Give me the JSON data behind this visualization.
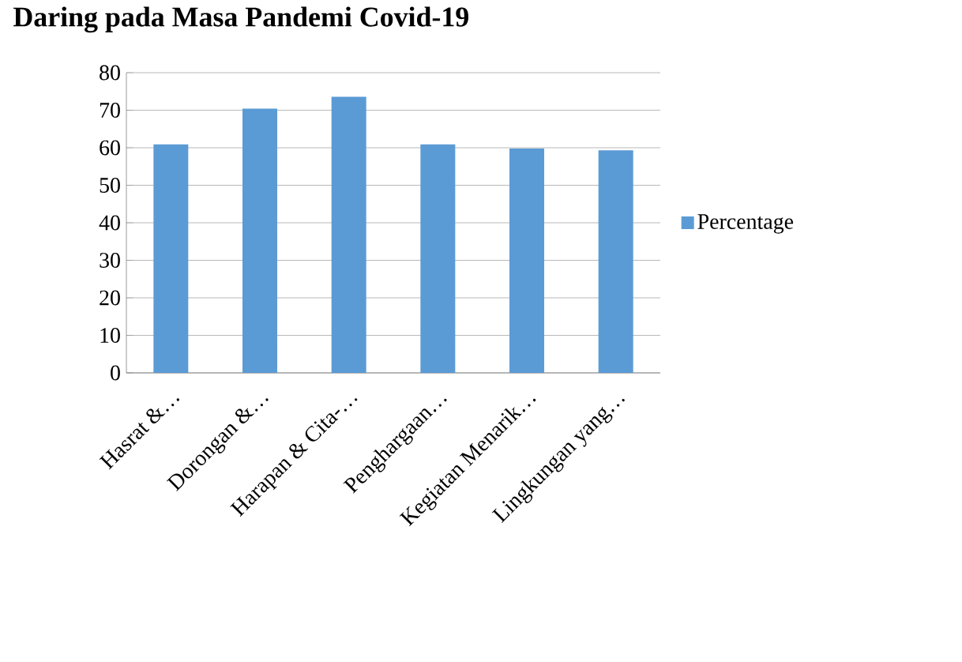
{
  "chart_data": {
    "type": "bar",
    "title": "Daring pada Masa Pandemi Covid-19",
    "categories": [
      "Hasrat &…",
      "Dorongan &…",
      "Harapan & Cita-…",
      "Penghargaan…",
      "Kegiatan Menarik…",
      "Lingkungan yang…"
    ],
    "series": [
      {
        "name": "Percentage",
        "color": "#5b9bd5",
        "values": [
          60.9,
          70.4,
          73.6,
          60.9,
          59.8,
          59.3
        ]
      }
    ],
    "ylim": [
      0,
      80
    ],
    "yticks": [
      0,
      10,
      20,
      30,
      40,
      50,
      60,
      70,
      80
    ],
    "grid": "y",
    "legend": "right"
  }
}
